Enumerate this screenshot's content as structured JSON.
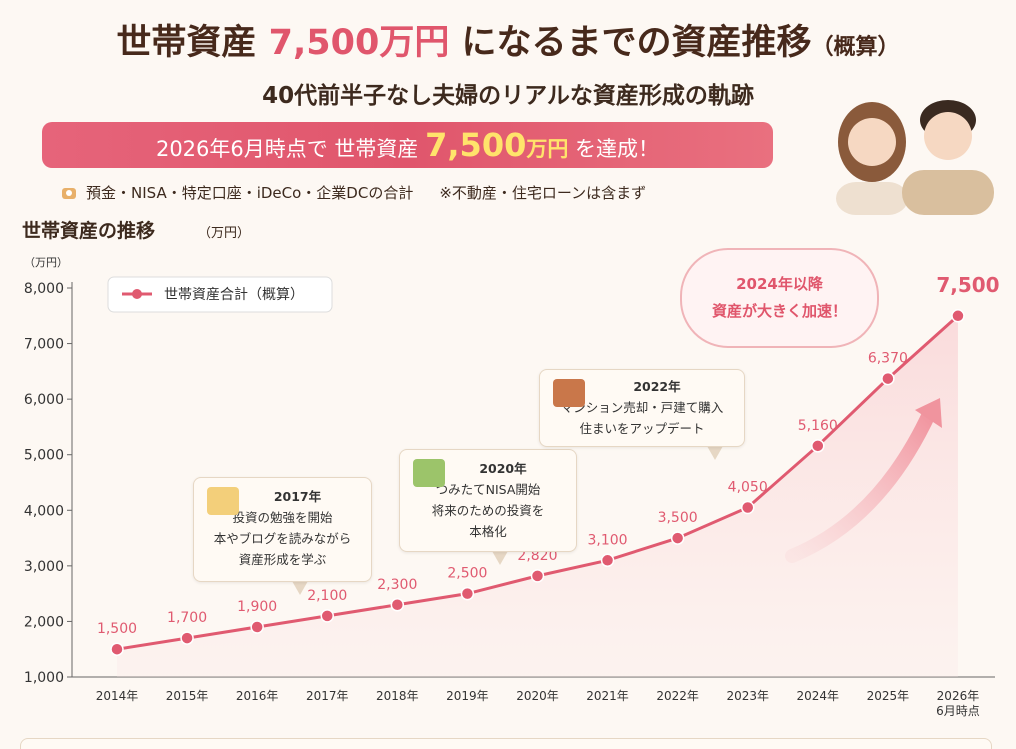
{
  "header": {
    "title_parts": [
      "世帯資産",
      "7,500万円",
      "になるまでの資産推移",
      "（概算）"
    ],
    "subtitle": "40代前半子なし夫婦のリアルな資産形成の軌跡",
    "banner": [
      "2026年6月時点で 世帯資産",
      "7,500",
      "万円",
      "を達成！"
    ],
    "notes": [
      "預金・NISA・特定口座・iDeCo・企業DCの合計",
      "※不動産・住宅ローンは含まず"
    ]
  },
  "chart_data": {
    "type": "line",
    "title": "世帯資産の推移",
    "title_unit": "（万円）",
    "y_label": "（万円）",
    "categories": [
      "2014年",
      "2015年",
      "2016年",
      "2017年",
      "2018年",
      "2019年",
      "2020年",
      "2021年",
      "2022年",
      "2023年",
      "2024年",
      "2025年",
      "2026年\n6月時点"
    ],
    "series": [
      {
        "name": "世帯資産合計（概算）",
        "color": "#e05a70",
        "values": [
          1500,
          1700,
          1900,
          2100,
          2300,
          2500,
          2820,
          3100,
          3500,
          4050,
          5160,
          6370,
          7500
        ],
        "value_labels": [
          "1,500",
          "1,700",
          "1,900",
          "2,100",
          "2,300",
          "2,500",
          "2,820",
          "3,100",
          "3,500",
          "4,050",
          "5,160",
          "6,370",
          "7,500"
        ]
      }
    ],
    "ylim": [
      1000,
      8000
    ],
    "yticks": [
      {
        "value": 1000,
        "label": "1,000"
      },
      {
        "value": 2000,
        "label": "2,000"
      },
      {
        "value": 3000,
        "label": "3,000"
      },
      {
        "value": 4000,
        "label": "4,000"
      },
      {
        "value": 5000,
        "label": "5,000"
      },
      {
        "value": 6000,
        "label": "6,000"
      },
      {
        "value": 7000,
        "label": "7,000"
      },
      {
        "value": 8000,
        "label": "8,000"
      }
    ],
    "legend": "top-left",
    "annotations": [
      {
        "lines": [
          "2017年",
          "投資の勉強を開始",
          "本やブログを読みながら",
          "資産形成を学ぶ"
        ]
      },
      {
        "lines": [
          "2020年",
          "つみたてNISA開始",
          "将来のための投資を",
          "本格化"
        ]
      },
      {
        "lines": [
          "2022年",
          "マンション売却・戸建て購入",
          "住まいをアップデート"
        ]
      },
      {
        "lines": [
          "2024年以降",
          "資産が大きく加速！"
        ]
      }
    ]
  }
}
